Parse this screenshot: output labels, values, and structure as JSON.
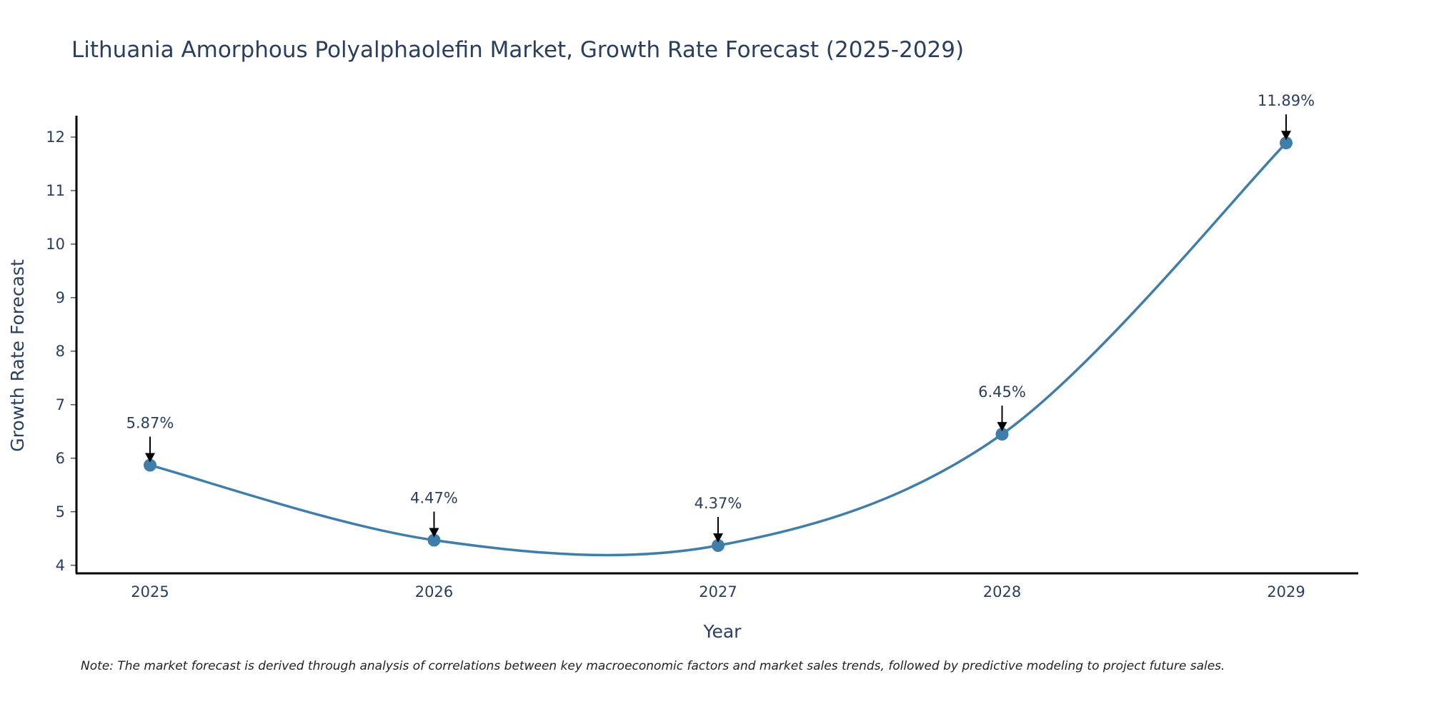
{
  "chart_data": {
    "type": "line",
    "title": "Lithuania Amorphous Polyalphaolefin Market, Growth Rate Forecast (2025-2029)",
    "xlabel": "Year",
    "ylabel": "Growth Rate Forecast",
    "categories": [
      "2025",
      "2026",
      "2027",
      "2028",
      "2029"
    ],
    "series": [
      {
        "name": "Growth Rate Forecast",
        "values": [
          5.87,
          4.47,
          4.37,
          6.45,
          11.89
        ],
        "labels": [
          "5.87%",
          "4.47%",
          "4.37%",
          "6.45%",
          "11.89%"
        ]
      }
    ],
    "yticks": [
      4,
      5,
      6,
      7,
      8,
      9,
      10,
      11,
      12
    ],
    "ytick_labels": [
      "4",
      "5",
      "6",
      "7",
      "8",
      "9",
      "10",
      "11",
      "12"
    ],
    "ylim": [
      3.85,
      12.4
    ],
    "grid": false,
    "line_shape": "spline",
    "colors": {
      "line": "#3f7eab",
      "marker": "#3f7eab",
      "arrow": "#000000",
      "text": "#2a3f5f",
      "axis": "#000000"
    }
  },
  "note": "Note: The market forecast is derived through analysis of correlations between key macroeconomic factors and market sales trends, followed by predictive modeling to project future sales."
}
